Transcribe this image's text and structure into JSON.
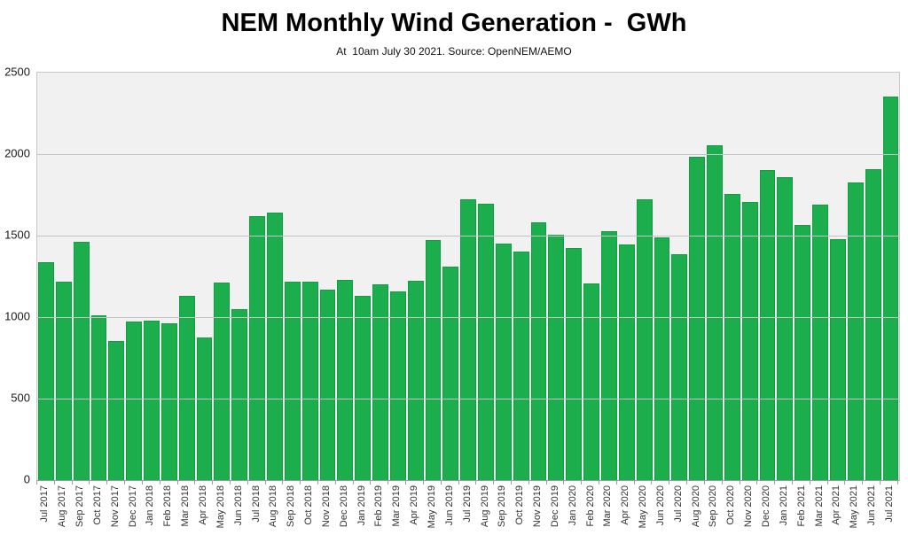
{
  "header": {
    "title": "NEM Monthly Wind Generation -  GWh",
    "subtitle": "At  10am July 30 2021. Source: OpenNEM/AEMO"
  },
  "colors": {
    "bar": "#1cae4d",
    "bar_border": "#119e43",
    "plot_background": "#f1f1f1",
    "gridline": "#c3c3c3",
    "axis_text": "#1a1a1a"
  },
  "chart_data": {
    "type": "bar",
    "title": "NEM Monthly Wind Generation -  GWh",
    "subtitle": "At  10am July 30 2021. Source: OpenNEM/AEMO",
    "xlabel": "",
    "ylabel": "",
    "ylim": [
      0,
      2500
    ],
    "yticks": [
      0,
      500,
      1000,
      1500,
      2000,
      2500
    ],
    "grid": true,
    "legend": false,
    "categories": [
      "Jul 2017",
      "Aug 2017",
      "Sep 2017",
      "Oct 2017",
      "Nov 2017",
      "Dec 2017",
      "Jan 2018",
      "Feb 2018",
      "Mar 2018",
      "Apr 2018",
      "May 2018",
      "Jun 2018",
      "Jul 2018",
      "Aug 2018",
      "Sep 2018",
      "Oct 2018",
      "Nov 2018",
      "Dec 2018",
      "Jan 2019",
      "Feb 2019",
      "Mar 2019",
      "Apr 2019",
      "May 2019",
      "Jun 2019",
      "Jul 2019",
      "Aug 2019",
      "Sep 2019",
      "Oct 2019",
      "Nov 2019",
      "Dec 2019",
      "Jan 2020",
      "Feb 2020",
      "Mar 2020",
      "Apr 2020",
      "May 2020",
      "Jun 2020",
      "Jul 2020",
      "Aug 2020",
      "Sep 2020",
      "Oct 2020",
      "Nov 2020",
      "Dec 2020",
      "Jan 2021",
      "Feb 2021",
      "Mar 2021",
      "Apr 2021",
      "May 2021",
      "Jun 2021",
      "Jul 2021"
    ],
    "values": [
      1335,
      1215,
      1460,
      1013,
      856,
      973,
      979,
      960,
      1131,
      874,
      1213,
      1048,
      1620,
      1640,
      1219,
      1217,
      1166,
      1228,
      1128,
      1199,
      1159,
      1225,
      1474,
      1310,
      1723,
      1694,
      1450,
      1401,
      1579,
      1506,
      1422,
      1207,
      1527,
      1446,
      1724,
      1487,
      1388,
      1986,
      2055,
      1756,
      1707,
      1902,
      1857,
      1564,
      1693,
      1477,
      1824,
      1909,
      2356
    ]
  }
}
